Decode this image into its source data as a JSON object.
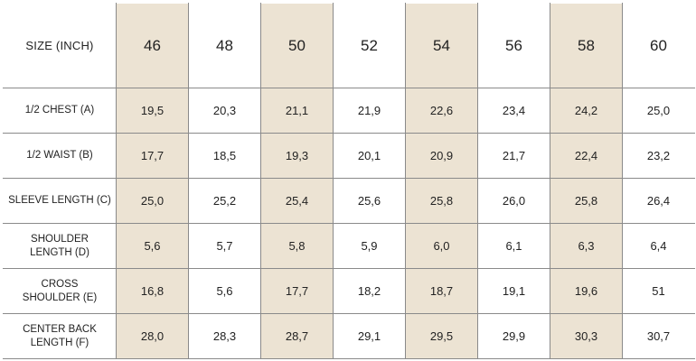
{
  "table": {
    "corner_label": "SIZE (INCH)",
    "sizes": [
      "46",
      "48",
      "50",
      "52",
      "54",
      "56",
      "58",
      "60"
    ],
    "shade_color": "#ece3d3",
    "rows": [
      {
        "label": "1/2 CHEST (A)",
        "values": [
          "19,5",
          "20,3",
          "21,1",
          "21,9",
          "22,6",
          "23,4",
          "24,2",
          "25,0"
        ]
      },
      {
        "label": "1/2 WAIST (B)",
        "values": [
          "17,7",
          "18,5",
          "19,3",
          "20,1",
          "20,9",
          "21,7",
          "22,4",
          "23,2"
        ]
      },
      {
        "label": "SLEEVE LENGTH (C)",
        "values": [
          "25,0",
          "25,2",
          "25,4",
          "25,6",
          "25,8",
          "26,0",
          "25,8",
          "26,4"
        ]
      },
      {
        "label_lines": [
          "SHOULDER",
          "LENGTH (D)"
        ],
        "values": [
          "5,6",
          "5,7",
          "5,8",
          "5,9",
          "6,0",
          "6,1",
          "6,3",
          "6,4"
        ]
      },
      {
        "label_lines": [
          "CROSS",
          "SHOULDER (E)"
        ],
        "values": [
          "16,8",
          "5,6",
          "17,7",
          "18,2",
          "18,7",
          "19,1",
          "19,6",
          "51"
        ]
      },
      {
        "label_lines": [
          "CENTER BACK",
          "LENGTH (F)"
        ],
        "values": [
          "28,0",
          "28,3",
          "28,7",
          "29,1",
          "29,5",
          "29,9",
          "30,3",
          "30,7"
        ]
      }
    ]
  }
}
